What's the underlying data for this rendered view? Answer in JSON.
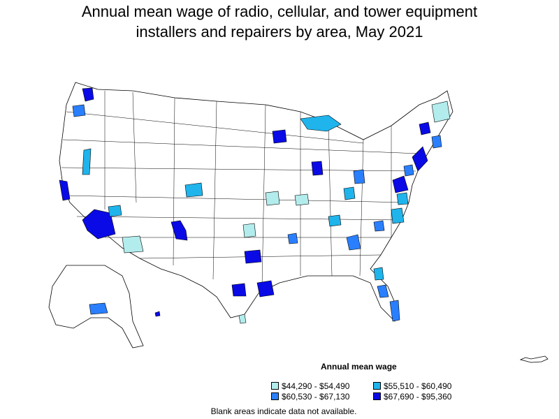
{
  "title": {
    "line1": "Annual mean wage of radio, cellular, and tower equipment",
    "line2": "installers and repairers by area, May 2021"
  },
  "legend": {
    "title": "Annual mean wage",
    "items": [
      {
        "label": "$44,290 - $54,490",
        "color": "#b3ecec"
      },
      {
        "label": "$55,510 - $60,490",
        "color": "#1fb4ec"
      },
      {
        "label": "$60,530 - $67,130",
        "color": "#2a7fff"
      },
      {
        "label": "$67,690 - $95,360",
        "color": "#0a0ae6"
      }
    ]
  },
  "note": "Blank areas indicate data not available.",
  "colors": {
    "blank": "#ffffff",
    "border": "#000000"
  }
}
